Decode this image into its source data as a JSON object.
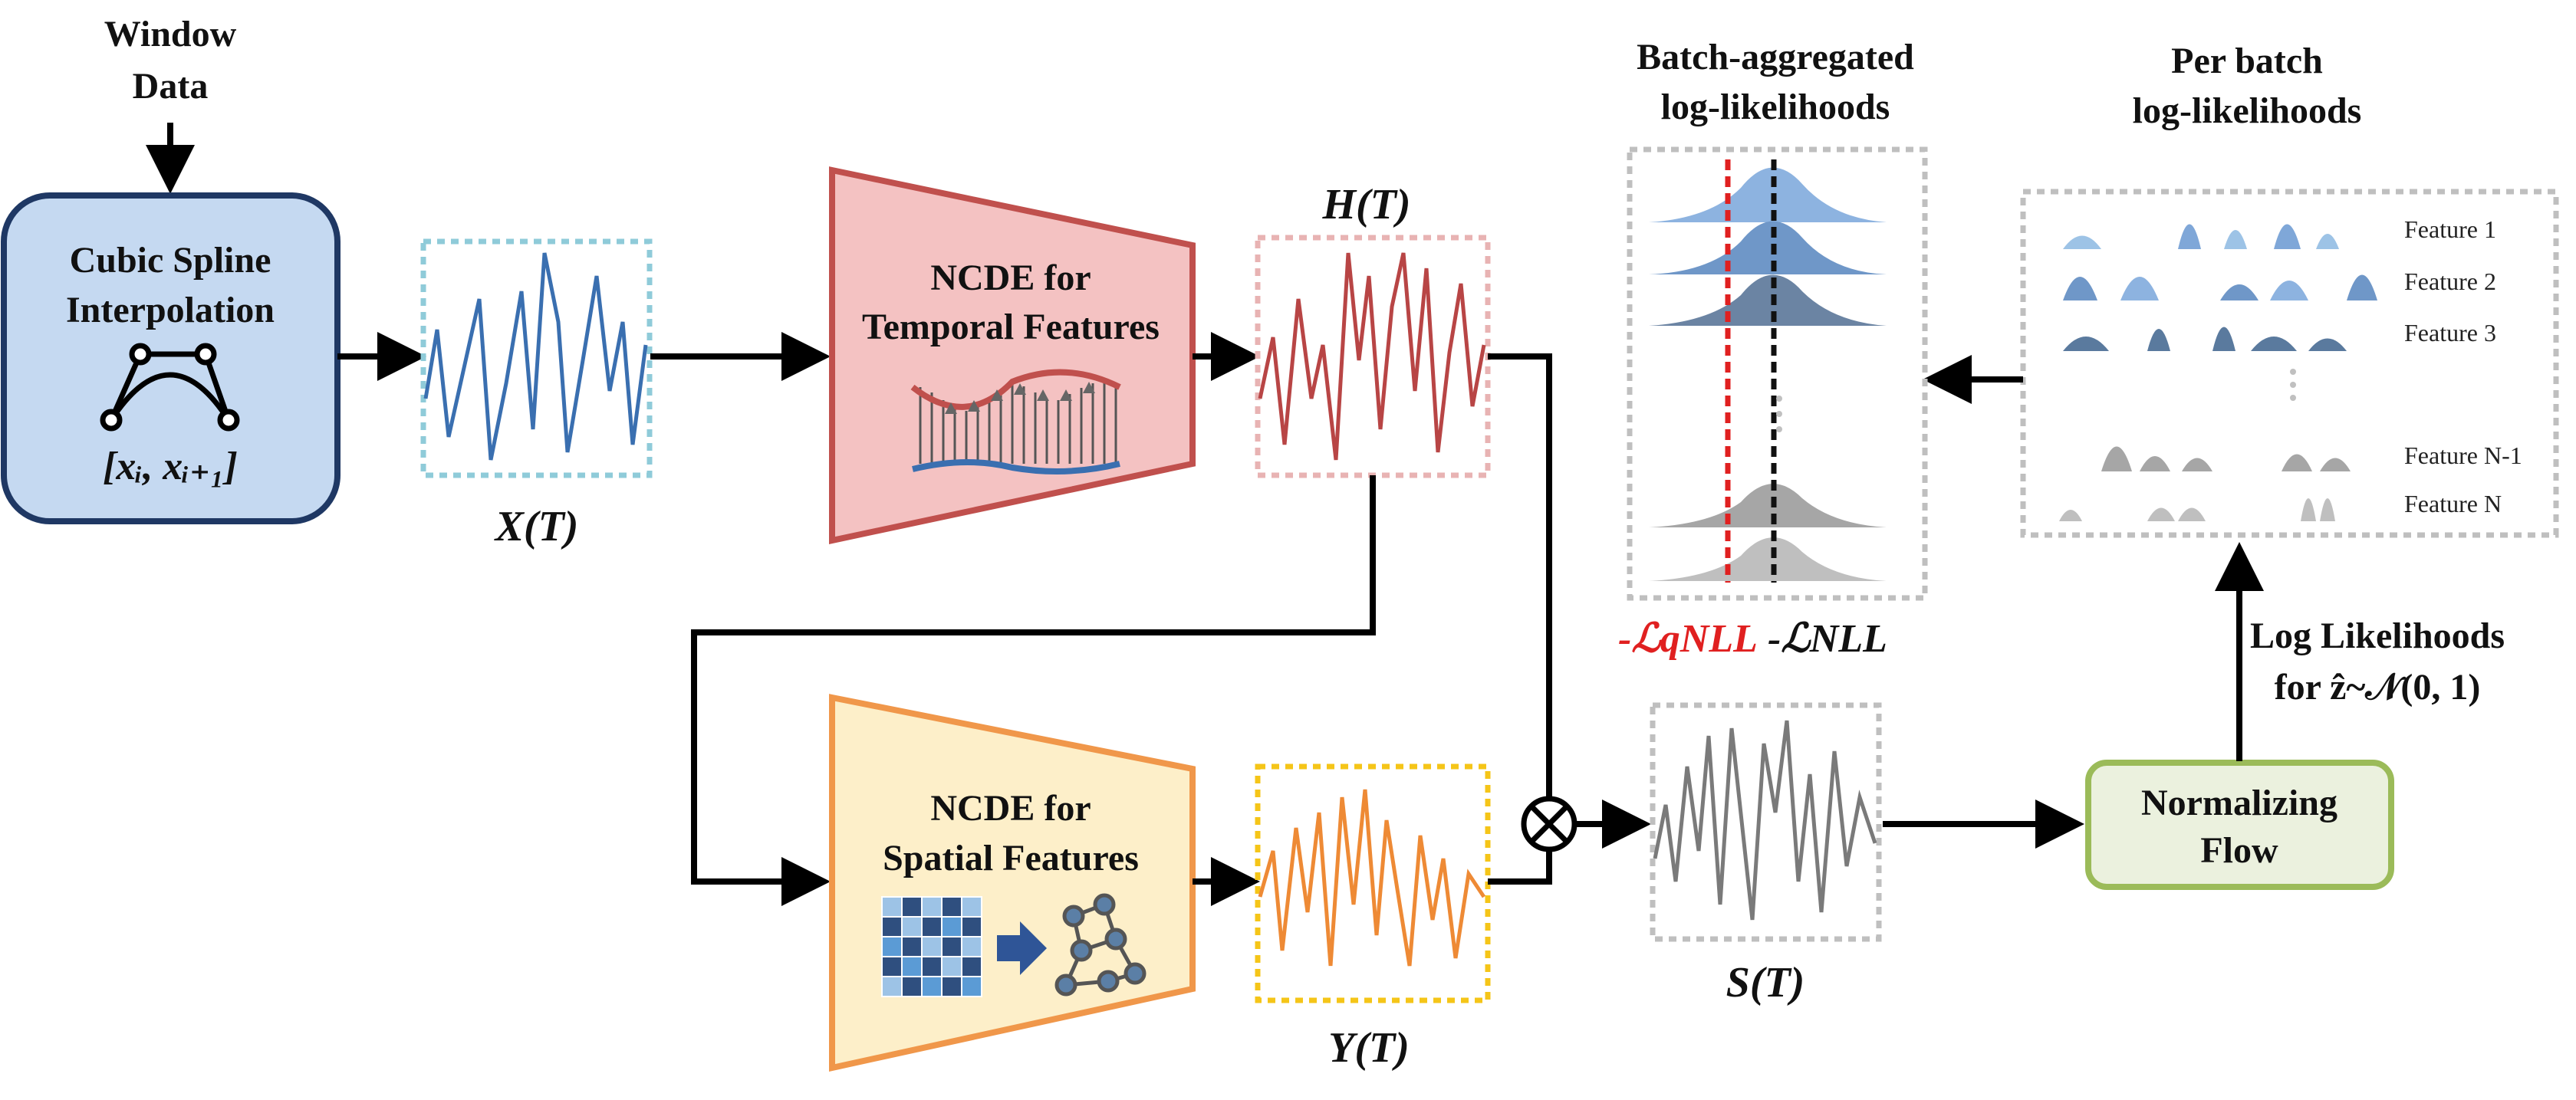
{
  "labels": {
    "window_data_line1": "Window",
    "window_data_line2": "Data",
    "spline_line1": "Cubic Spline",
    "spline_line2": "Interpolation",
    "spline_formula": "[xᵢ, xᵢ₊₁]",
    "x_t": "X(T)",
    "ncde_temporal_line1": "NCDE for",
    "ncde_temporal_line2": "Temporal Features",
    "h_t": "H(T)",
    "ncde_spatial_line1": "NCDE for",
    "ncde_spatial_line2": "Spatial Features",
    "y_t": "Y(T)",
    "s_t": "S(T)",
    "nf_line1": "Normalizing",
    "nf_line2": "Flow",
    "loglik_line1": "Log Likelihoods",
    "loglik_line2": "for ẑ~𝒩(0, 1)",
    "batch_agg_line1": "Batch-aggregated",
    "batch_agg_line2": "log-likelihoods",
    "per_batch_line1": "Per batch",
    "per_batch_line2": "log-likelihoods",
    "qnll": "-ℒqNLL",
    "nll": "-ℒNLL"
  },
  "features": [
    "Feature 1",
    "Feature 2",
    "Feature 3",
    "Feature N-1",
    "Feature N"
  ],
  "colors": {
    "spline_fill": "#c5d9f1",
    "spline_stroke": "#1f3864",
    "temporal_fill": "#f4c2c2",
    "temporal_stroke": "#c0504d",
    "spatial_fill": "#fdefc9",
    "spatial_stroke": "#f0974a",
    "nf_fill": "#ebf1de",
    "nf_stroke": "#9bbb59",
    "x_series": "#3a6fb0",
    "h_series": "#b84545",
    "y_series": "#ee8a35",
    "s_series": "#7a7a7a",
    "qnll_red": "#e02020"
  }
}
